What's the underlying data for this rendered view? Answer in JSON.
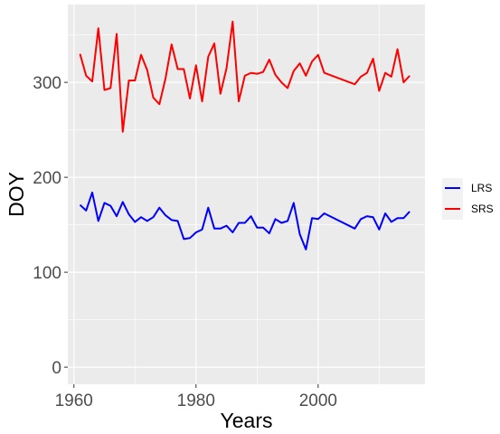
{
  "chart_data": {
    "type": "line",
    "title": "",
    "xlabel": "Years",
    "ylabel": "DOY",
    "xlim": [
      1959,
      2017.5
    ],
    "ylim": [
      -18,
      382
    ],
    "x_ticks": [
      1960,
      1980,
      2000
    ],
    "x_tick_labels": [
      "1960",
      "1980",
      "2000"
    ],
    "y_ticks": [
      0,
      100,
      200,
      300
    ],
    "y_tick_labels": [
      "0",
      "100",
      "200",
      "300"
    ],
    "x_minor_ticks": [
      1970,
      1990,
      2010
    ],
    "y_minor_ticks": [
      50,
      150,
      250,
      350
    ],
    "grid": true,
    "legend_position": "right",
    "panel_background": "#ebebeb",
    "grid_color": "#ffffff",
    "series": [
      {
        "name": "LRS",
        "color": "#0000ff",
        "x": [
          1961,
          1962,
          1963,
          1964,
          1965,
          1966,
          1967,
          1968,
          1969,
          1970,
          1971,
          1972,
          1973,
          1974,
          1975,
          1976,
          1977,
          1978,
          1979,
          1980,
          1981,
          1982,
          1983,
          1984,
          1985,
          1986,
          1987,
          1988,
          1989,
          1990,
          1991,
          1992,
          1993,
          1994,
          1995,
          1996,
          1997,
          1998,
          1999,
          2000,
          2001,
          2006,
          2007,
          2008,
          2009,
          2010,
          2011,
          2012,
          2013,
          2014,
          2015
        ],
        "values": [
          171,
          165,
          184,
          154,
          173,
          170,
          159,
          174,
          161,
          153,
          158,
          154,
          158,
          168,
          160,
          155,
          154,
          135,
          136,
          142,
          145,
          168,
          146,
          146,
          149,
          142,
          152,
          152,
          159,
          147,
          147,
          141,
          156,
          152,
          154,
          173,
          140,
          124,
          157,
          156,
          162,
          146,
          156,
          159,
          158,
          145,
          162,
          153,
          157,
          157,
          164
        ]
      },
      {
        "name": "SRS",
        "color": "#ff0000",
        "x": [
          1961,
          1962,
          1963,
          1964,
          1965,
          1966,
          1967,
          1968,
          1969,
          1970,
          1971,
          1972,
          1973,
          1974,
          1975,
          1976,
          1977,
          1978,
          1979,
          1980,
          1981,
          1982,
          1983,
          1984,
          1985,
          1986,
          1987,
          1988,
          1989,
          1990,
          1991,
          1992,
          1993,
          1994,
          1995,
          1996,
          1997,
          1998,
          1999,
          2000,
          2001,
          2006,
          2007,
          2008,
          2009,
          2010,
          2011,
          2012,
          2013,
          2014,
          2015
        ],
        "values": [
          330,
          307,
          301,
          357,
          292,
          294,
          351,
          248,
          302,
          302,
          329,
          313,
          284,
          277,
          304,
          340,
          314,
          314,
          283,
          318,
          280,
          327,
          341,
          288,
          315,
          364,
          280,
          307,
          310,
          309,
          311,
          324,
          308,
          300,
          294,
          312,
          320,
          307,
          322,
          329,
          310,
          298,
          306,
          310,
          325,
          291,
          310,
          306,
          335,
          300,
          307
        ]
      }
    ]
  }
}
